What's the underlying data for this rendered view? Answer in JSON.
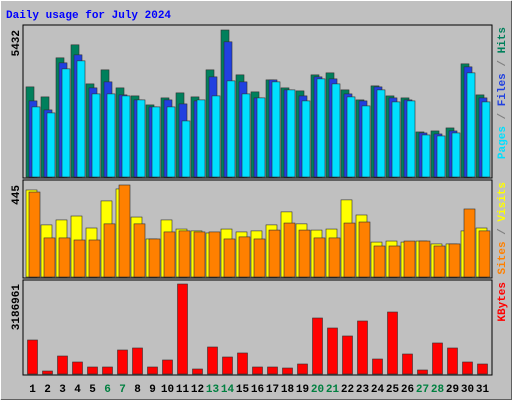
{
  "chart_data": [
    {
      "type": "bar",
      "title": "Daily usage for July 2024",
      "title_color": "#0000ff",
      "ylim": [
        0,
        5432
      ],
      "yticks": [
        5432
      ],
      "legend_separator": " / ",
      "separator_color": "#808080",
      "series": [
        {
          "name": "Hits",
          "color": "#00805c",
          "values": [
            3330,
            2960,
            4403,
            4884,
            3441,
            3959,
            3293,
            2997,
            2664,
            2923,
            3108,
            2960,
            3959,
            5432,
            3774,
            3145,
            3589,
            3293,
            3182,
            3774,
            3848,
            3219,
            2849,
            3367,
            2997,
            2923,
            1665,
            1702,
            1813,
            4181,
            3034
          ]
        },
        {
          "name": "Files",
          "color": "#2040e0",
          "values": [
            2812,
            2479,
            4218,
            4514,
            3293,
            3515,
            3034,
            2849,
            2590,
            2849,
            2701,
            2812,
            3700,
            4995,
            3515,
            2923,
            3589,
            3219,
            2997,
            3700,
            3626,
            3071,
            2812,
            3330,
            2923,
            2849,
            1628,
            1591,
            1702,
            4070,
            2923
          ]
        },
        {
          "name": "Pages",
          "color": "#00e0ff",
          "values": [
            2590,
            2368,
            3996,
            4292,
            3071,
            3071,
            2997,
            2849,
            2590,
            2590,
            2072,
            2849,
            2997,
            3552,
            3071,
            2923,
            3515,
            3219,
            2812,
            3626,
            3441,
            2960,
            2627,
            3219,
            2775,
            2812,
            1554,
            1517,
            1628,
            3848,
            2775
          ]
        }
      ]
    },
    {
      "type": "bar",
      "ylim": [
        0,
        445
      ],
      "yticks": [
        445
      ],
      "legend_separator": " / ",
      "separator_color": "#808080",
      "series": [
        {
          "name": "Visits",
          "color": "#ffff00",
          "values": [
            421,
            252,
            276,
            295,
            237,
            368,
            426,
            290,
            184,
            276,
            232,
            223,
            213,
            232,
            218,
            223,
            252,
            315,
            257,
            227,
            232,
            373,
            300,
            169,
            174,
            169,
            174,
            160,
            160,
            223,
            237
          ]
        },
        {
          "name": "Sites",
          "color": "#ff8000",
          "values": [
            411,
            189,
            189,
            179,
            179,
            257,
            445,
            257,
            184,
            218,
            223,
            218,
            218,
            184,
            194,
            184,
            227,
            261,
            227,
            189,
            189,
            261,
            266,
            150,
            150,
            174,
            174,
            150,
            160,
            329,
            223
          ]
        }
      ]
    },
    {
      "type": "bar",
      "ylim": [
        0,
        3186961
      ],
      "yticks": [
        3186961
      ],
      "categories": [
        "1",
        "2",
        "3",
        "4",
        "5",
        "6",
        "7",
        "8",
        "9",
        "10",
        "11",
        "12",
        "13",
        "14",
        "15",
        "16",
        "17",
        "18",
        "19",
        "20",
        "21",
        "22",
        "23",
        "24",
        "25",
        "26",
        "27",
        "28",
        "29",
        "30",
        "31"
      ],
      "category_colors": [
        "#000000",
        "#000000",
        "#000000",
        "#000000",
        "#000000",
        "#008040",
        "#008040",
        "#000000",
        "#000000",
        "#000000",
        "#000000",
        "#000000",
        "#008040",
        "#008040",
        "#000000",
        "#000000",
        "#000000",
        "#000000",
        "#000000",
        "#008040",
        "#008040",
        "#000000",
        "#000000",
        "#000000",
        "#000000",
        "#000000",
        "#008040",
        "#008040",
        "#000000",
        "#000000",
        "#000000"
      ],
      "series": [
        {
          "name": "KBytes",
          "color": "#ff0000",
          "values": [
            1204000,
            106000,
            637000,
            425000,
            248000,
            248000,
            850000,
            921000,
            248000,
            496000,
            3186961,
            177000,
            956000,
            602000,
            744000,
            248000,
            248000,
            212000,
            354000,
            1983000,
            1629000,
            1346000,
            1877000,
            531000,
            2195000,
            708000,
            142000,
            1098000,
            921000,
            425000,
            354000
          ]
        }
      ]
    }
  ]
}
